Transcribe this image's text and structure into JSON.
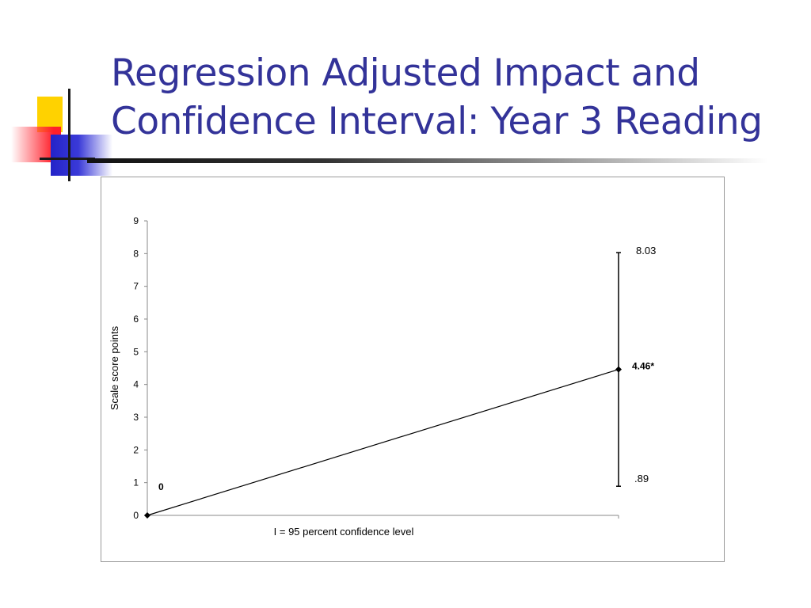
{
  "slide": {
    "title_line1": "Regression Adjusted Impact and",
    "title_line2": "Confidence Interval: Year 3 Reading",
    "accent_color": "#333399"
  },
  "chart_data": {
    "type": "line",
    "title": "",
    "xlabel": "I = 95 percent confidence level",
    "ylabel": "Scale score points",
    "ylim": [
      0,
      9
    ],
    "yticks": [
      "0",
      "1",
      "2",
      "3",
      "4",
      "5",
      "6",
      "7",
      "8",
      "9"
    ],
    "grid": false,
    "series": [
      {
        "values": [
          0,
          4.46
        ],
        "point_labels": [
          "0",
          "4.46*"
        ],
        "error_bar": {
          "index": 1,
          "low": 0.89,
          "high": 8.03,
          "low_label": ".89",
          "high_label": "8.03"
        }
      }
    ]
  }
}
